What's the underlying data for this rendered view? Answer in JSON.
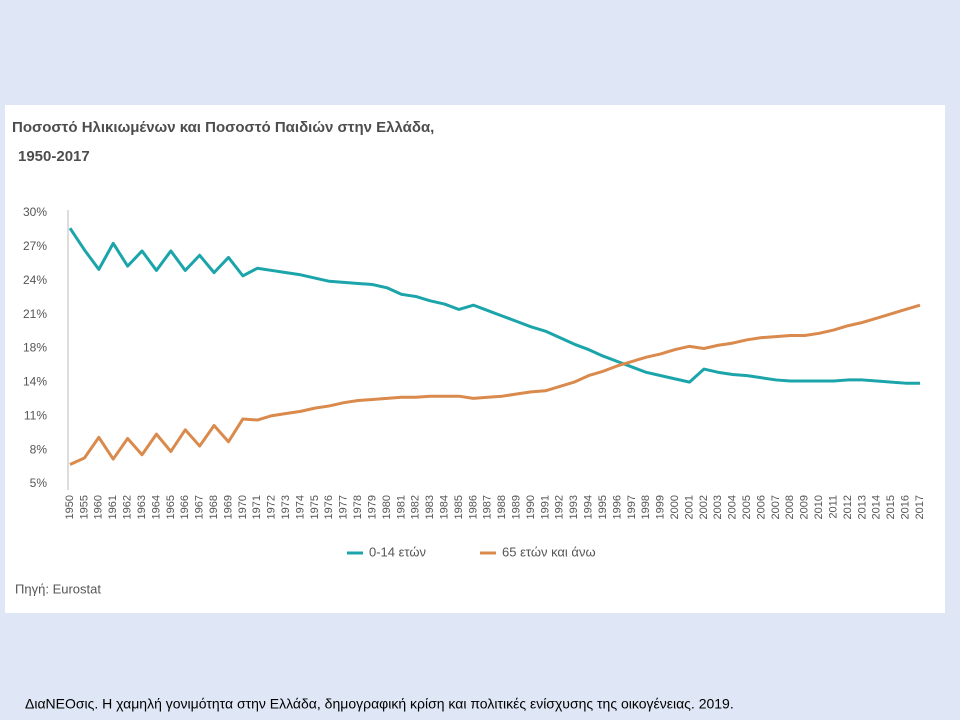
{
  "chart_data": {
    "type": "line",
    "title": "Ποσοστό Ηλικιωμένων και Ποσοστό Παιδιών στην Ελλάδα,",
    "subtitle": "1950-2017",
    "categories": [
      "1950",
      "1955",
      "1960",
      "1961",
      "1962",
      "1963",
      "1964",
      "1965",
      "1966",
      "1967",
      "1968",
      "1969",
      "1970",
      "1971",
      "1972",
      "1973",
      "1974",
      "1975",
      "1976",
      "1977",
      "1978",
      "1979",
      "1980",
      "1981",
      "1982",
      "1983",
      "1984",
      "1985",
      "1986",
      "1987",
      "1988",
      "1989",
      "1990",
      "1991",
      "1992",
      "1993",
      "1994",
      "1995",
      "1996",
      "1997",
      "1998",
      "1999",
      "2000",
      "2001",
      "2002",
      "2003",
      "2004",
      "2005",
      "2006",
      "2007",
      "2008",
      "2009",
      "2010",
      "2011",
      "2012",
      "2013",
      "2014",
      "2015",
      "2016",
      "2017"
    ],
    "series": [
      {
        "name": "0-14 ετών",
        "color": "#1ba5ab",
        "values": [
          28.6,
          26.6,
          24.8,
          27.2,
          25.1,
          26.5,
          24.7,
          26.5,
          24.7,
          26.1,
          24.5,
          25.9,
          24.2,
          24.9,
          24.7,
          24.5,
          24.3,
          24.0,
          23.7,
          23.6,
          23.5,
          23.4,
          23.1,
          22.5,
          22.3,
          21.9,
          21.6,
          21.1,
          21.5,
          21.0,
          20.5,
          20.0,
          19.5,
          19.1,
          18.5,
          17.9,
          17.4,
          16.8,
          16.3,
          15.8,
          15.3,
          15.0,
          14.7,
          14.4,
          15.6,
          15.3,
          15.1,
          15.0,
          14.8,
          14.6,
          14.5,
          14.5,
          14.5,
          14.5,
          14.6,
          14.6,
          14.5,
          14.4,
          14.3,
          14.3
        ]
      },
      {
        "name": "65 ετών και άνω",
        "color": "#d98a4c",
        "values": [
          6.8,
          7.4,
          9.3,
          7.3,
          9.2,
          7.7,
          9.6,
          8.0,
          10.0,
          8.5,
          10.4,
          8.9,
          11.0,
          10.9,
          11.3,
          11.5,
          11.7,
          12.0,
          12.2,
          12.5,
          12.7,
          12.8,
          12.9,
          13.0,
          13.0,
          13.1,
          13.1,
          13.1,
          12.9,
          13.0,
          13.1,
          13.3,
          13.5,
          13.6,
          14.0,
          14.4,
          15.0,
          15.4,
          15.9,
          16.3,
          16.7,
          17.0,
          17.4,
          17.7,
          17.5,
          17.8,
          18.0,
          18.3,
          18.5,
          18.6,
          18.7,
          18.7,
          18.9,
          19.2,
          19.6,
          19.9,
          20.3,
          20.7,
          21.1,
          21.5
        ]
      }
    ],
    "ylim": [
      5,
      30
    ],
    "yticks": [
      {
        "value": 30,
        "label": "30%"
      },
      {
        "value": 26.875,
        "label": "27%"
      },
      {
        "value": 23.75,
        "label": "24%"
      },
      {
        "value": 20.625,
        "label": "21%"
      },
      {
        "value": 17.5,
        "label": "18%"
      },
      {
        "value": 14.375,
        "label": "14%"
      },
      {
        "value": 11.25,
        "label": "11%"
      },
      {
        "value": 8.125,
        "label": "8%"
      },
      {
        "value": 5,
        "label": "5%"
      }
    ],
    "source": "Πηγή: Eurostat"
  },
  "caption": "ΔιαΝΕΟσις. Η χαμηλή γονιμότητα στην Ελλάδα, δημογραφική κρίση και πολιτικές ενίσχυσης της οικογένειας. 2019."
}
